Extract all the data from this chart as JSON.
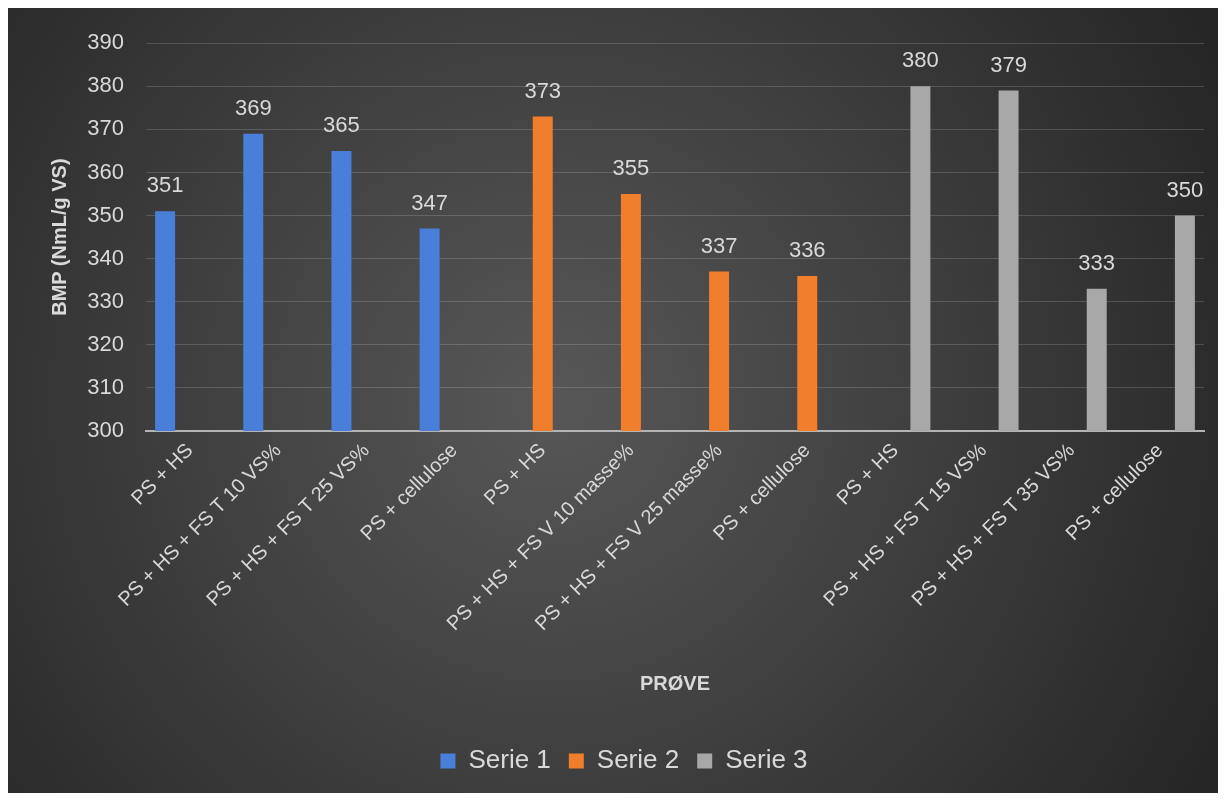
{
  "chart_data": {
    "type": "bar",
    "categories": [
      "PS + HS",
      "PS + HS + FS T 10 VS%",
      "PS + HS + FS T 25 VS%",
      "PS + cellulose",
      "PS + HS",
      "PS + HS + FS V 10 masse%",
      "PS + HS + FS V 25 masse%",
      "PS + cellulose",
      "PS + HS",
      "PS + HS + FS T 15 VS%",
      "PS + HS + FS T 35 VS%",
      "PS + cellulose"
    ],
    "xlabel": "PRØVE",
    "ylabel": "BMP (NmL/g VS)",
    "series": [
      {
        "name": "Serie 1",
        "color": "#4a7fd9",
        "values": [
          351,
          369,
          365,
          347,
          null,
          null,
          null,
          null,
          null,
          null,
          null,
          null
        ]
      },
      {
        "name": "Serie 2",
        "color": "#f07e2c",
        "values": [
          null,
          null,
          null,
          null,
          373,
          355,
          337,
          336,
          null,
          null,
          null,
          null
        ]
      },
      {
        "name": "Serie 3",
        "color": "#a8a8a8",
        "values": [
          null,
          null,
          null,
          null,
          null,
          null,
          null,
          null,
          380,
          379,
          333,
          350
        ]
      }
    ],
    "ylim": [
      300,
      390
    ],
    "yticks": [
      300,
      310,
      320,
      330,
      340,
      350,
      360,
      370,
      380,
      390
    ],
    "grid": "y",
    "legend": "bottom",
    "data_labels": true
  }
}
